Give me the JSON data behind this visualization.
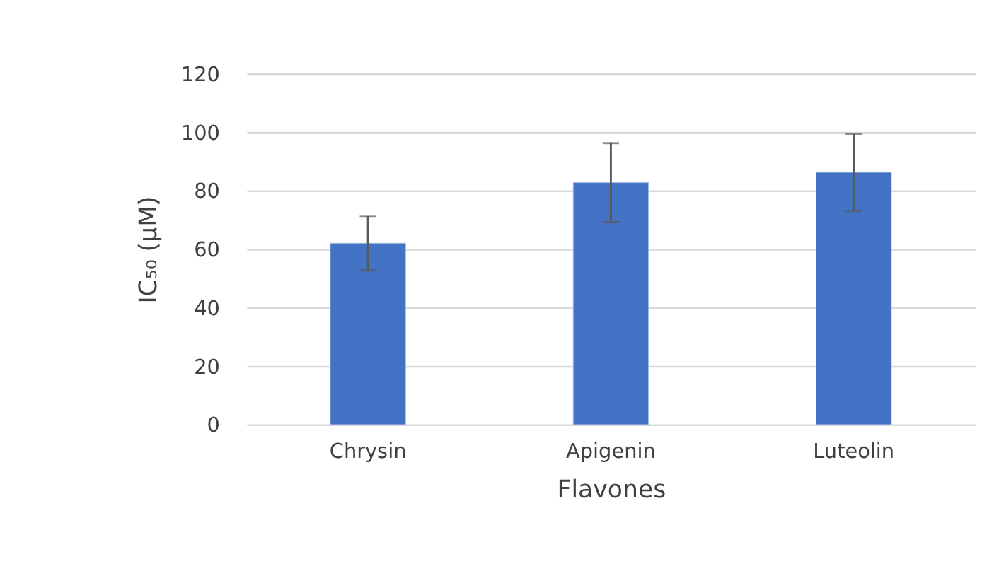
{
  "chart_data": {
    "type": "bar",
    "categories": [
      "Chrysin",
      "Apigenin",
      "Luteolin"
    ],
    "values": [
      62,
      82.7,
      86.2
    ],
    "errors": [
      9.3,
      13.5,
      13.2
    ],
    "color": "#4472c4",
    "xlabel": "Flavones",
    "ylabel": "IC₅₀ (μM)",
    "ylim": [
      0,
      120
    ],
    "yticks": [
      0,
      20,
      40,
      60,
      80,
      100,
      120
    ],
    "grid": "y"
  }
}
